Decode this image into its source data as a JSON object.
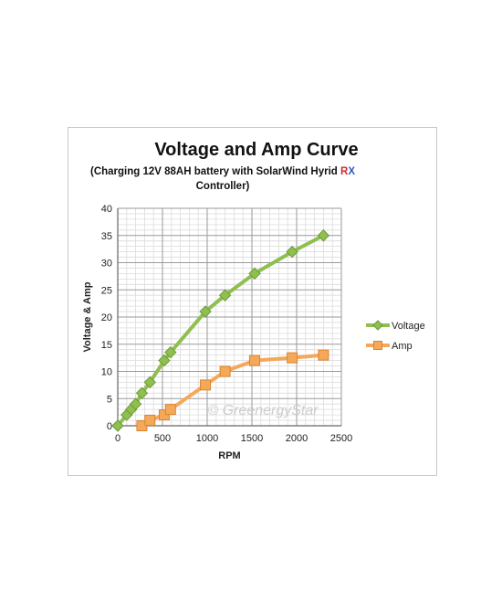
{
  "chart_data": {
    "type": "line",
    "title": "Voltage and Amp Curve",
    "subtitle_main": "(Charging 12V 88AH battery with SolarWind Hyrid ",
    "subtitle_r": "R",
    "subtitle_x": "X",
    "subtitle_end": "Controller)",
    "xlabel": "RPM",
    "ylabel": "Voltage & Amp",
    "xlim": [
      0,
      2500
    ],
    "ylim": [
      0,
      40
    ],
    "x_ticks": [
      "0",
      "500",
      "1000",
      "1500",
      "2000",
      "2500"
    ],
    "y_ticks": [
      "0",
      "5",
      "10",
      "15",
      "20",
      "25",
      "30",
      "35",
      "40"
    ],
    "grid": true,
    "legend_position": "right",
    "watermark": "© GreenergyStar",
    "series": [
      {
        "name": "Voltage",
        "color": "#8fbf4f",
        "marker": "diamond",
        "x": [
          0,
          100,
          150,
          200,
          270,
          360,
          520,
          590,
          980,
          1200,
          1530,
          1950,
          2300
        ],
        "y": [
          0,
          2,
          3,
          4,
          6,
          8,
          12,
          13.5,
          21,
          24,
          28,
          32,
          35
        ]
      },
      {
        "name": "Amp",
        "color": "#f5a85a",
        "marker": "square",
        "x": [
          270,
          360,
          520,
          590,
          980,
          1200,
          1530,
          1950,
          2300
        ],
        "y": [
          0,
          1,
          2,
          3,
          7.5,
          10,
          12,
          12.5,
          13
        ]
      }
    ]
  }
}
